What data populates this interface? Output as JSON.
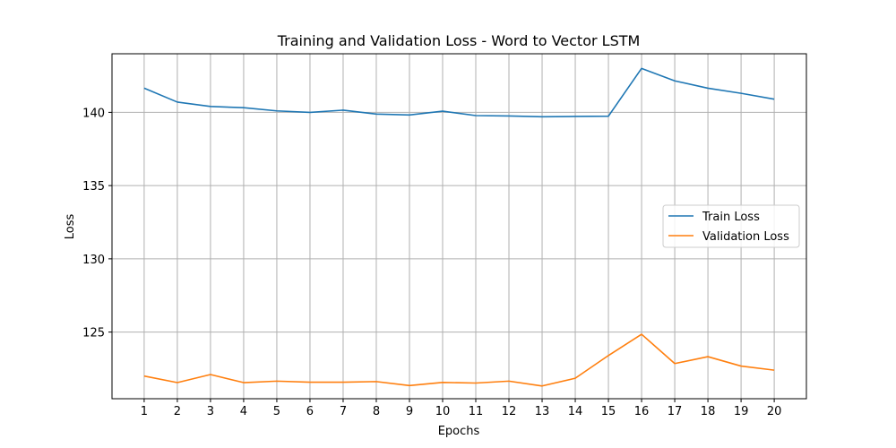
{
  "chart_data": {
    "type": "line",
    "title": "Training and Validation Loss - Word to Vector LSTM",
    "xlabel": "Epochs",
    "ylabel": "Loss",
    "x": [
      1,
      2,
      3,
      4,
      5,
      6,
      7,
      8,
      9,
      10,
      11,
      12,
      13,
      14,
      15,
      16,
      17,
      18,
      19,
      20
    ],
    "xlim": [
      0.03,
      20.97
    ],
    "ylim": [
      120.45,
      144.0
    ],
    "yticks": [
      125,
      130,
      135,
      140
    ],
    "grid": true,
    "legend_position": "center-right",
    "series": [
      {
        "name": "Train Loss",
        "color": "#1f77b4",
        "values": [
          141.65,
          140.7,
          140.4,
          140.32,
          140.1,
          140.0,
          140.15,
          139.88,
          139.82,
          140.08,
          139.78,
          139.75,
          139.7,
          139.72,
          139.74,
          143.0,
          142.15,
          141.65,
          141.3,
          140.9
        ]
      },
      {
        "name": "Validation Loss",
        "color": "#ff7f0e",
        "values": [
          122.0,
          121.55,
          122.1,
          121.55,
          121.65,
          121.58,
          121.58,
          121.62,
          121.35,
          121.56,
          121.52,
          121.65,
          121.32,
          121.85,
          123.4,
          124.85,
          122.85,
          123.32,
          122.68,
          122.4
        ]
      }
    ]
  }
}
